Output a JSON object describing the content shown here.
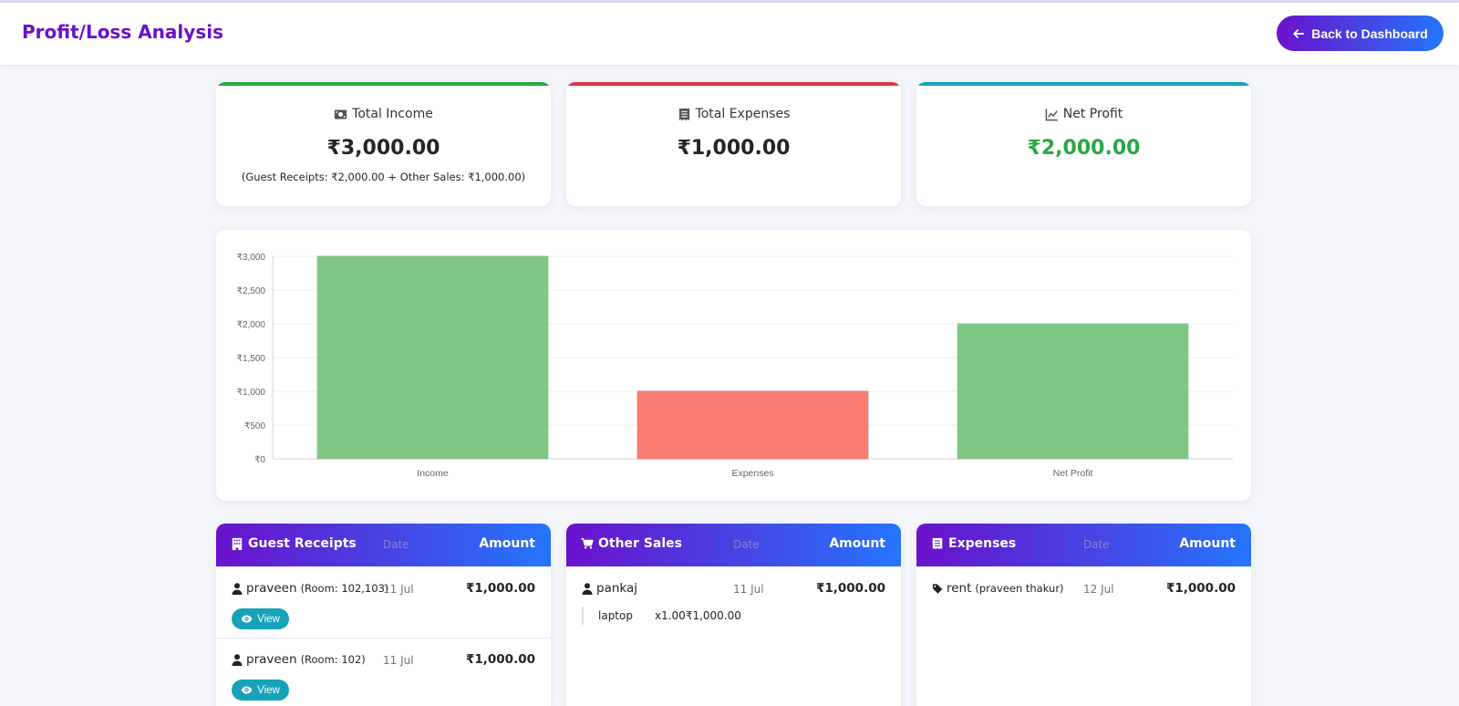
{
  "header": {
    "title": "Profit/Loss Analysis",
    "back_label": "Back to Dashboard"
  },
  "stats": {
    "income": {
      "label": "Total Income",
      "value": "₹3,000.00",
      "sub": "(Guest Receipts: ₹2,000.00 + Other Sales: ₹1,000.00)",
      "icon": "money-bill-icon",
      "accent": "#28a745"
    },
    "expenses": {
      "label": "Total Expenses",
      "value": "₹1,000.00",
      "icon": "receipt-icon",
      "accent": "#dc3545"
    },
    "net": {
      "label": "Net Profit",
      "value": "₹2,000.00",
      "icon": "chart-line-icon",
      "accent": "#17a2b8",
      "value_color": "#28a745"
    }
  },
  "chart_data": {
    "type": "bar",
    "categories": [
      "Income",
      "Expenses",
      "Net Profit"
    ],
    "values": [
      3000,
      1000,
      2000
    ],
    "colors": [
      "#81c784",
      "#f77b72",
      "#81c784"
    ],
    "ylim": [
      0,
      3000
    ],
    "yticks": [
      0,
      500,
      1000,
      1500,
      2000,
      2500,
      3000
    ],
    "ytick_labels": [
      "₹0",
      "₹500",
      "₹1,000",
      "₹1,500",
      "₹2,000",
      "₹2,500",
      "₹3,000"
    ],
    "grid": true
  },
  "guest_receipts": {
    "title": "Guest Receipts",
    "date_label": "Date",
    "amount_label": "Amount",
    "rows": [
      {
        "name": "praveen",
        "sub": "(Room: 102,103)",
        "date": "11 Jul",
        "amount": "₹1,000.00",
        "action": "View"
      },
      {
        "name": "praveen",
        "sub": "(Room: 102)",
        "date": "11 Jul",
        "amount": "₹1,000.00",
        "action": "View"
      }
    ]
  },
  "other_sales": {
    "title": "Other Sales",
    "date_label": "Date",
    "amount_label": "Amount",
    "rows": [
      {
        "name": "pankaj",
        "date": "11 Jul",
        "amount": "₹1,000.00",
        "items": [
          {
            "name": "laptop",
            "qty": "x1.00",
            "price": "₹1,000.00"
          }
        ]
      }
    ]
  },
  "expenses_list": {
    "title": "Expenses",
    "date_label": "Date",
    "amount_label": "Amount",
    "rows": [
      {
        "name": "rent",
        "sub": "(praveen thakur)",
        "date": "12 Jul",
        "amount": "₹1,000.00"
      }
    ]
  }
}
